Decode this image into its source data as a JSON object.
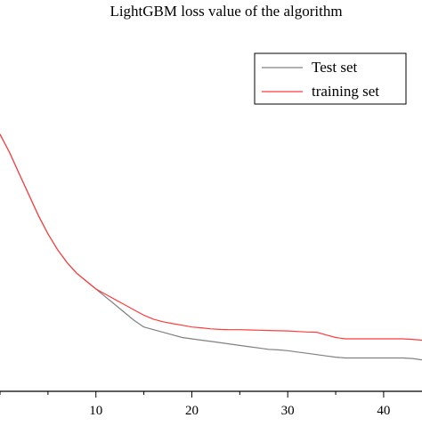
{
  "chart_data": {
    "type": "line",
    "title": "LightGBM loss value of the algorithm",
    "xlabel": "",
    "ylabel": "",
    "xlim": [
      0,
      44
    ],
    "ylim": [
      0.0,
      1.0
    ],
    "x_ticks": [
      10,
      20,
      30,
      40
    ],
    "grid": false,
    "legend": "top-right",
    "series": [
      {
        "name": "Test set",
        "color": "#808080",
        "x": [
          0,
          1,
          2,
          3,
          4,
          5,
          6,
          7,
          8,
          9,
          10,
          11,
          12,
          13,
          14,
          15,
          16,
          17,
          18,
          19,
          20,
          21,
          22,
          23,
          24,
          25,
          26,
          27,
          28,
          29,
          30,
          31,
          32,
          33,
          34,
          35,
          36,
          37,
          38,
          39,
          40,
          41,
          42,
          43,
          44
        ],
        "values": [
          0.98,
          0.91,
          0.83,
          0.75,
          0.67,
          0.6,
          0.54,
          0.49,
          0.45,
          0.42,
          0.39,
          0.36,
          0.33,
          0.3,
          0.27,
          0.245,
          0.235,
          0.225,
          0.215,
          0.205,
          0.2,
          0.195,
          0.19,
          0.185,
          0.18,
          0.175,
          0.17,
          0.165,
          0.16,
          0.158,
          0.155,
          0.15,
          0.145,
          0.14,
          0.135,
          0.13,
          0.127,
          0.127,
          0.127,
          0.127,
          0.127,
          0.127,
          0.127,
          0.125,
          0.12
        ]
      },
      {
        "name": "training set",
        "color": "#ff3b3b",
        "x": [
          0,
          1,
          2,
          3,
          4,
          5,
          6,
          7,
          8,
          9,
          10,
          11,
          12,
          13,
          14,
          15,
          16,
          17,
          18,
          19,
          20,
          21,
          22,
          23,
          24,
          25,
          26,
          27,
          28,
          29,
          30,
          31,
          32,
          33,
          34,
          35,
          36,
          37,
          38,
          39,
          40,
          41,
          42,
          43,
          44
        ],
        "values": [
          0.98,
          0.91,
          0.83,
          0.75,
          0.67,
          0.6,
          0.54,
          0.49,
          0.45,
          0.42,
          0.39,
          0.37,
          0.35,
          0.33,
          0.31,
          0.29,
          0.275,
          0.265,
          0.258,
          0.252,
          0.245,
          0.242,
          0.238,
          0.236,
          0.235,
          0.235,
          0.234,
          0.233,
          0.232,
          0.231,
          0.23,
          0.228,
          0.226,
          0.225,
          0.215,
          0.205,
          0.2,
          0.2,
          0.2,
          0.2,
          0.2,
          0.2,
          0.2,
          0.198,
          0.195
        ]
      }
    ]
  }
}
